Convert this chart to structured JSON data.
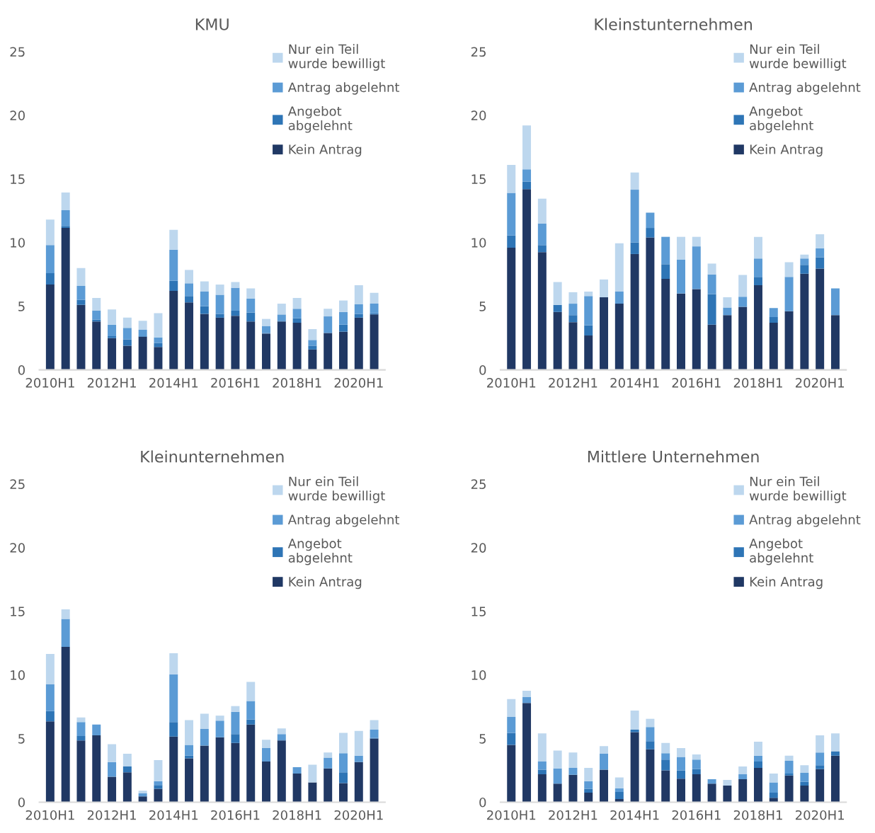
{
  "chart_data": [
    {
      "type": "bar",
      "title": "KMU",
      "stacked": true,
      "legend": "top right",
      "ylim": [
        0,
        25
      ],
      "yticks": [
        0,
        5,
        10,
        15,
        20,
        25
      ],
      "categories": [
        "2010H1",
        null,
        null,
        null,
        "2012H1",
        null,
        null,
        null,
        "2014H1",
        null,
        null,
        null,
        "2016H1",
        null,
        null,
        null,
        "2018H1",
        null,
        null,
        null,
        "2020H1",
        null
      ],
      "series": [
        {
          "name": "Kein Antrag",
          "color": "#203864",
          "values": [
            6.7,
            11.15,
            5.1,
            3.8,
            2.5,
            1.9,
            2.6,
            1.8,
            6.2,
            5.3,
            4.4,
            4.1,
            4.25,
            3.8,
            2.85,
            3.8,
            3.7,
            1.6,
            2.9,
            3.0,
            4.1,
            4.35
          ]
        },
        {
          "name": "Angebot\nabgelehnt",
          "color": "#2e75b6",
          "values": [
            0.9,
            0.15,
            0.4,
            0.15,
            0.15,
            0.5,
            0.05,
            0.3,
            0.8,
            0.5,
            0.6,
            0.3,
            0.4,
            0.7,
            0.05,
            0.05,
            0.35,
            0.3,
            null,
            0.55,
            0.3,
            0.1
          ]
        },
        {
          "name": "Antrag abgelehnt",
          "color": "#5b9bd5",
          "values": [
            2.2,
            1.24,
            1.1,
            0.7,
            0.9,
            0.9,
            0.5,
            0.45,
            2.45,
            1.0,
            1.15,
            1.5,
            1.8,
            1.1,
            0.55,
            0.5,
            0.75,
            0.45,
            1.3,
            1.0,
            0.75,
            0.75
          ]
        },
        {
          "name": "Nur ein Teil\nwurde bewilligt",
          "color": "#bdd7ee",
          "values": [
            2.0,
            1.4,
            1.4,
            1.0,
            1.2,
            0.8,
            0.7,
            1.9,
            1.55,
            1.05,
            0.8,
            0.8,
            0.45,
            0.8,
            0.55,
            0.85,
            0.85,
            0.85,
            0.6,
            0.9,
            1.5,
            0.85
          ]
        }
      ]
    },
    {
      "type": "bar",
      "title": "Kleinstunternehmen",
      "stacked": true,
      "legend": "top right",
      "ylim": [
        0,
        25
      ],
      "yticks": [
        0,
        5,
        10,
        15,
        20,
        25
      ],
      "categories": [
        "2010H1",
        null,
        null,
        null,
        "2012H1",
        null,
        null,
        null,
        "2014H1",
        null,
        null,
        null,
        "2016H1",
        null,
        null,
        null,
        "2018H1",
        null,
        null,
        null,
        "2020H1",
        null
      ],
      "series": [
        {
          "name": "Kein Antrag",
          "color": "#203864",
          "values": [
            9.6,
            14.2,
            9.25,
            4.55,
            3.75,
            2.7,
            5.7,
            5.2,
            9.1,
            10.4,
            7.15,
            6.0,
            6.35,
            3.55,
            4.3,
            4.95,
            6.65,
            3.7,
            4.6,
            7.55,
            7.95,
            4.3
          ]
        },
        {
          "name": "Angebot\nabgelehnt",
          "color": "#2e75b6",
          "values": [
            0.95,
            0.6,
            0.55,
            0.55,
            0.55,
            0.8,
            0,
            0,
            0.9,
            0.75,
            1.15,
            0,
            0,
            2.4,
            0,
            0,
            0.65,
            0.45,
            0,
            0.7,
            0.9,
            0
          ]
        },
        {
          "name": "Antrag abgelehnt",
          "color": "#5b9bd5",
          "values": [
            3.35,
            0.95,
            1.7,
            0,
            0.9,
            2.3,
            0,
            0.95,
            4.15,
            1.2,
            2.15,
            2.65,
            3.35,
            1.55,
            0.6,
            0.8,
            1.45,
            0.7,
            2.7,
            0.5,
            0.7,
            2.1
          ]
        },
        {
          "name": "Nur ein Teil\nwurde bewilligt",
          "color": "#bdd7ee",
          "values": [
            2.2,
            3.45,
            1.95,
            1.8,
            0.9,
            0.35,
            1.4,
            3.8,
            1.35,
            0,
            0,
            1.8,
            0.75,
            0.85,
            0.8,
            1.7,
            1.7,
            0,
            1.15,
            0.3,
            1.1,
            0
          ]
        }
      ]
    },
    {
      "type": "bar",
      "title": "Kleinunternehmen",
      "stacked": true,
      "legend": "top right",
      "ylim": [
        0,
        25
      ],
      "yticks": [
        0,
        5,
        10,
        15,
        20,
        25
      ],
      "categories": [
        "2010H1",
        null,
        null,
        null,
        "2012H1",
        null,
        null,
        null,
        "2014H1",
        null,
        null,
        null,
        "2016H1",
        null,
        null,
        null,
        "2018H1",
        null,
        null,
        null,
        "2020H1",
        null
      ],
      "series": [
        {
          "name": "Kein Antrag",
          "color": "#203864",
          "values": [
            6.35,
            12.2,
            4.85,
            5.25,
            2.0,
            2.35,
            0.45,
            1.05,
            5.15,
            3.45,
            4.45,
            5.1,
            4.65,
            6.1,
            3.2,
            4.85,
            2.25,
            1.55,
            2.65,
            1.5,
            3.15,
            5.0
          ]
        },
        {
          "name": "Angebot\nabgelehnt",
          "color": "#2e75b6",
          "values": [
            0.8,
            0,
            0.35,
            0,
            0,
            0.45,
            0,
            0.3,
            1.15,
            0.2,
            0,
            0,
            0.7,
            0.4,
            0,
            0.05,
            0,
            0,
            0,
            0.85,
            0,
            0.05
          ]
        },
        {
          "name": "Antrag abgelehnt",
          "color": "#5b9bd5",
          "values": [
            2.1,
            2.2,
            1.1,
            0.85,
            1.15,
            0,
            0.25,
            0.3,
            3.75,
            0.85,
            1.3,
            1.3,
            1.75,
            1.45,
            1.05,
            0.45,
            0.5,
            0,
            0.85,
            1.5,
            0.5,
            0.65
          ]
        },
        {
          "name": "Nur ein Teil\nwurde bewilligt",
          "color": "#bdd7ee",
          "values": [
            2.4,
            0.75,
            0.35,
            0,
            1.4,
            1.0,
            0.2,
            1.65,
            1.65,
            1.95,
            1.2,
            0.4,
            0.45,
            1.5,
            0.65,
            0.45,
            0,
            1.4,
            0.4,
            1.6,
            1.95,
            0.75
          ]
        }
      ]
    },
    {
      "type": "bar",
      "title": "Mittlere Unternehmen",
      "stacked": true,
      "legend": "top right",
      "ylim": [
        0,
        25
      ],
      "yticks": [
        0,
        5,
        10,
        15,
        20,
        25
      ],
      "categories": [
        "2010H1",
        null,
        null,
        null,
        "2012H1",
        null,
        null,
        null,
        "2014H1",
        null,
        null,
        null,
        "2016H1",
        null,
        null,
        null,
        "2018H1",
        null,
        null,
        null,
        "2020H1",
        null
      ],
      "series": [
        {
          "name": "Kein Antrag",
          "color": "#203864",
          "values": [
            4.5,
            7.8,
            2.2,
            1.45,
            2.15,
            0.75,
            2.55,
            0.25,
            5.5,
            4.15,
            2.5,
            1.85,
            2.2,
            1.45,
            1.3,
            1.8,
            2.7,
            0.35,
            2.1,
            1.3,
            2.6,
            3.65
          ]
        },
        {
          "name": "Angebot\nabgelehnt",
          "color": "#2e75b6",
          "values": [
            0.95,
            0,
            0.35,
            0,
            0,
            0.3,
            0,
            0.55,
            0.2,
            0.65,
            0.85,
            0.65,
            0.4,
            0,
            0,
            0,
            0.5,
            0.4,
            0.15,
            0.3,
            0.3,
            0.35
          ]
        },
        {
          "name": "Antrag abgelehnt",
          "color": "#5b9bd5",
          "values": [
            1.25,
            0.45,
            0.65,
            1.2,
            0.55,
            0.6,
            1.25,
            0.3,
            0,
            1.1,
            0.5,
            1.05,
            0.75,
            0.35,
            0,
            0.4,
            0.45,
            0.8,
            1.0,
            0.7,
            1.0,
            0
          ]
        },
        {
          "name": "Nur ein Teil\nwurde bewilligt",
          "color": "#bdd7ee",
          "values": [
            1.4,
            0.5,
            2.2,
            1.4,
            1.2,
            1.05,
            0.6,
            0.85,
            1.5,
            0.65,
            0.8,
            0.7,
            0.4,
            0,
            0.45,
            0.6,
            1.1,
            0.7,
            0.4,
            0.6,
            1.35,
            1.4
          ]
        }
      ]
    }
  ]
}
